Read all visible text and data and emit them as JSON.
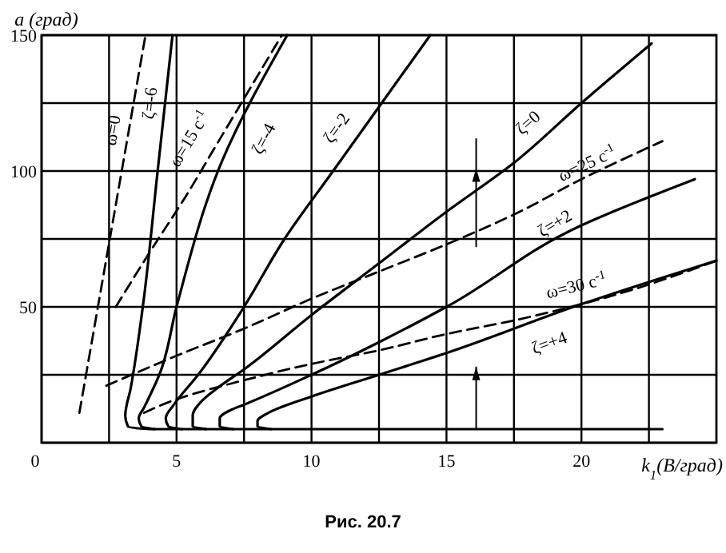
{
  "chart_data": {
    "type": "line",
    "ylabel": "a (град)",
    "xlabel": "k$_{1}$(В/град)",
    "annotations": [
      "Рис. 20.7"
    ],
    "xlim": [
      0,
      25
    ],
    "ylim": [
      0,
      150
    ],
    "xticks": [
      0,
      {
        "value": 2.5,
        "label": null
      },
      5,
      {
        "value": 7.5,
        "label": null
      },
      10,
      {
        "value": 12.5,
        "label": null
      },
      15,
      {
        "value": 17.5,
        "label": null
      },
      20,
      {
        "value": 22.5,
        "label": null
      }
    ],
    "yticks": [
      {
        "value": 0,
        "label": null
      },
      {
        "value": 25,
        "label": null
      },
      50,
      {
        "value": 75,
        "label": null
      },
      100,
      {
        "value": 125,
        "label": null
      },
      150
    ],
    "grid": true,
    "series": [
      {
        "name": "ω=0",
        "color": "#000000",
        "line_style": "dashed",
        "x": [
          1.4,
          3.85
        ],
        "values": [
          11,
          150
        ]
      },
      {
        "name": "ζ=-6",
        "color": "#000000",
        "line_style": "solid",
        "x": [
          23,
          4,
          3.2,
          3.1,
          3.3,
          3.75,
          4.3,
          4.85
        ],
        "values": [
          5,
          5,
          6,
          10,
          20,
          50,
          100,
          150
        ]
      },
      {
        "name": "ω=15 с$^{-1}$",
        "color": "#000000",
        "line_style": "dashed",
        "x": [
          2.75,
          4,
          5.3,
          6.5,
          7.7,
          8.9
        ],
        "values": [
          50,
          70,
          90,
          110,
          130,
          150
        ]
      },
      {
        "name": "ζ=-4",
        "color": "#000000",
        "line_style": "solid",
        "x": [
          4.2,
          3.7,
          3.6,
          3.8,
          4.4,
          5,
          6.7,
          9.1
        ],
        "values": [
          5,
          6,
          9,
          13,
          26,
          50,
          104,
          150
        ]
      },
      {
        "name": "ζ=-2",
        "color": "#000000",
        "line_style": "solid",
        "x": [
          5.2,
          4.7,
          4.6,
          4.9,
          5.8,
          7.5,
          9,
          10.8,
          14.4
        ],
        "values": [
          5,
          6,
          9,
          14,
          25,
          50,
          75,
          100,
          150
        ]
      },
      {
        "name": "ζ=0",
        "color": "#000000",
        "line_style": "solid",
        "x": [
          6.1,
          5.6,
          5.6,
          5.9,
          6.5,
          7.5,
          10,
          12.5,
          15,
          17.5,
          20,
          22.6
        ],
        "values": [
          5,
          6,
          10,
          15,
          20,
          27,
          47,
          66,
          85,
          103,
          125,
          147
        ]
      },
      {
        "name": "ω=25 с$^{-1}$",
        "color": "#000000",
        "line_style": "dashed",
        "x": [
          2.4,
          5,
          7.5,
          10,
          12.5,
          15,
          17.5,
          20,
          23
        ],
        "values": [
          21,
          32,
          42,
          53,
          63,
          73,
          84,
          97,
          111
        ]
      },
      {
        "name": "ζ=+2",
        "color": "#000000",
        "line_style": "solid",
        "x": [
          7.1,
          6.6,
          6.6,
          7,
          7.5,
          10,
          12.5,
          15,
          20,
          24.2
        ],
        "values": [
          5,
          6,
          9,
          12,
          14,
          25,
          37,
          50,
          80,
          97
        ]
      },
      {
        "name": "ω=30 с$^{-1}$",
        "color": "#000000",
        "line_style": "dashed",
        "x": [
          3.8,
          5,
          7.5,
          10,
          12.5,
          15,
          17.5,
          20,
          25
        ],
        "values": [
          11,
          16,
          23,
          29,
          34,
          40,
          45,
          51,
          67
        ]
      },
      {
        "name": "ζ=+4",
        "color": "#000000",
        "line_style": "solid",
        "x": [
          8.5,
          8,
          8,
          8.4,
          10,
          12.5,
          15,
          20,
          25
        ],
        "values": [
          5,
          6,
          8,
          11,
          17,
          25,
          33,
          51,
          67
        ]
      }
    ]
  }
}
